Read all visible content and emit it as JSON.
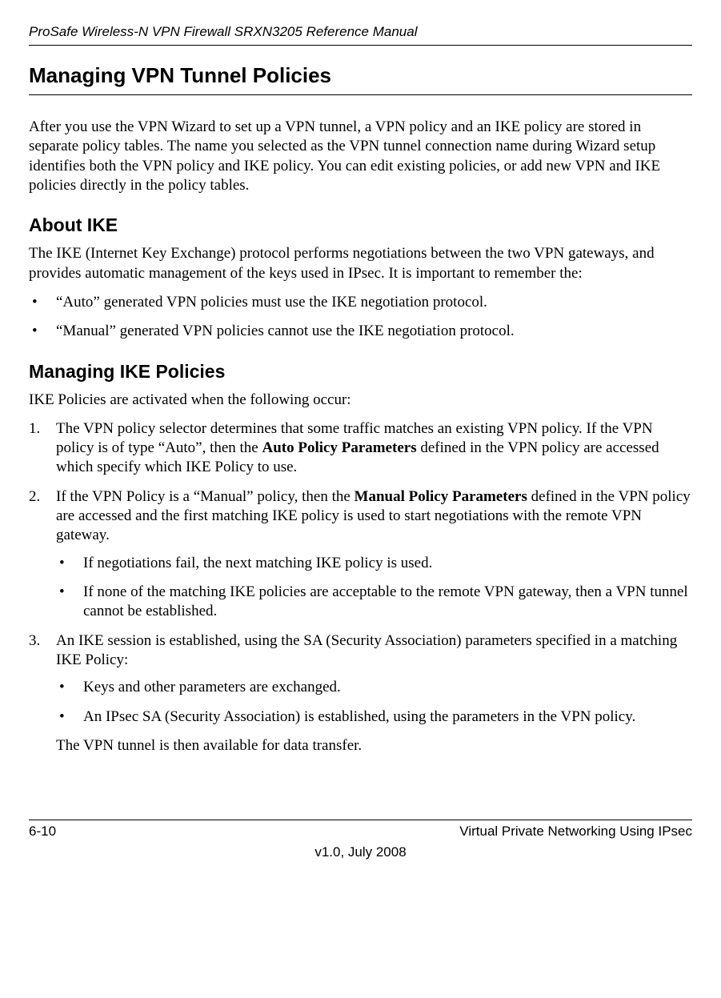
{
  "header": {
    "running_title": "ProSafe Wireless-N VPN Firewall SRXN3205 Reference Manual"
  },
  "section": {
    "title": "Managing VPN Tunnel Policies",
    "intro": "After you use the VPN Wizard to set up a VPN tunnel, a VPN policy and an IKE policy are stored in separate policy tables. The name you selected as the VPN tunnel connection name during Wizard setup identifies both the VPN policy and IKE policy. You can edit existing policies, or add new VPN and IKE policies directly in the policy tables."
  },
  "about_ike": {
    "heading": "About IKE",
    "para": "The IKE (Internet Key Exchange) protocol performs negotiations between the two VPN gateways, and provides automatic management of the keys used in IPsec. It is important to remember the:",
    "bullets": [
      "“Auto” generated VPN policies must use the IKE negotiation protocol.",
      "“Manual” generated VPN policies cannot use the IKE negotiation protocol."
    ]
  },
  "managing_ike": {
    "heading": "Managing IKE Policies",
    "para": "IKE Policies are activated when the following occur:",
    "steps": [
      {
        "pre": "The VPN policy selector determines that some traffic matches an existing VPN policy. If the VPN policy is of type “Auto”, then the ",
        "bold": "Auto Policy Parameters",
        "post": " defined in the VPN policy are accessed which specify which IKE Policy to use.",
        "sub": []
      },
      {
        "pre": "If the VPN Policy is a “Manual” policy, then the ",
        "bold": "Manual Policy Parameters",
        "post": " defined in the VPN policy are accessed and the first matching IKE policy is used to start negotiations with the remote VPN gateway.",
        "sub": [
          "If negotiations fail, the next matching IKE policy is used.",
          "If none of the matching IKE policies are acceptable to the remote VPN gateway, then a VPN tunnel cannot be established."
        ]
      },
      {
        "pre": "An IKE session is established, using the SA (Security Association) parameters specified in a matching IKE Policy:",
        "bold": "",
        "post": "",
        "sub": [
          "Keys and other parameters are exchanged.",
          "An IPsec SA (Security Association) is established, using the parameters in the VPN policy."
        ]
      }
    ],
    "trail": "The VPN tunnel is then available for data transfer."
  },
  "footer": {
    "page_num": "6-10",
    "chapter": "Virtual Private Networking Using IPsec",
    "version": "v1.0, July 2008"
  }
}
